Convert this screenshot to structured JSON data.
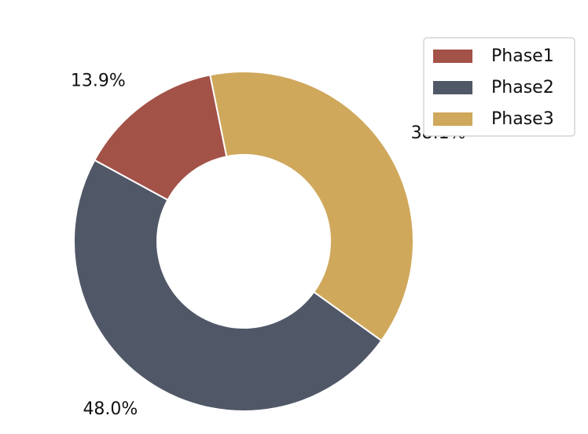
{
  "chart_data": {
    "type": "pie",
    "donut": true,
    "series": [
      {
        "name": "Phase1",
        "value": 13.9,
        "label": "13.9%",
        "color": "#a35248"
      },
      {
        "name": "Phase2",
        "value": 48.0,
        "label": "48.0%",
        "color": "#505767"
      },
      {
        "name": "Phase3",
        "value": 38.1,
        "label": "38.1%",
        "color": "#cfa85c"
      }
    ],
    "legend_position": "top-right"
  }
}
